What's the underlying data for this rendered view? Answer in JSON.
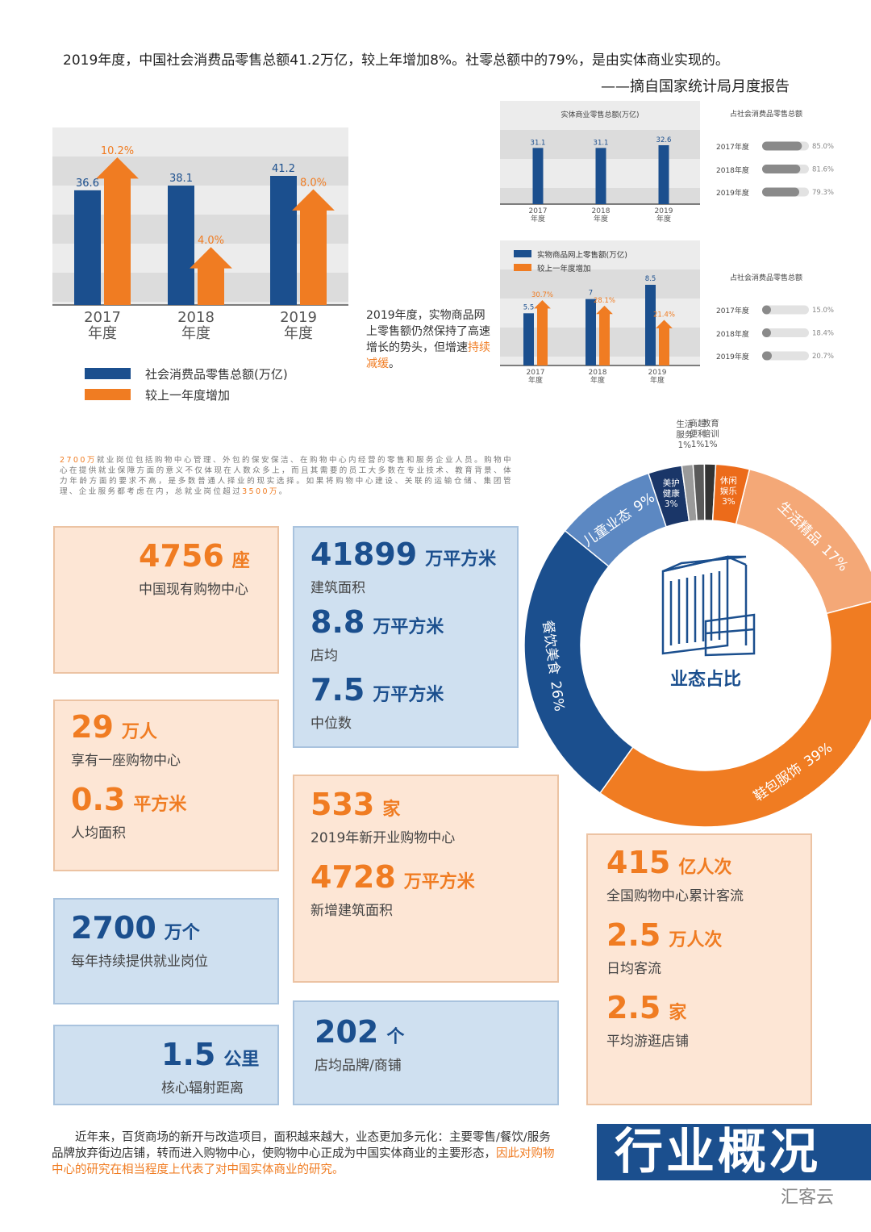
{
  "header": {
    "text": "2019年度，中国社会消费品零售总额41.2万亿，较上年增加8%。社零总额中的79%，是由实体商业实现的。",
    "source": "——摘自国家统计局月度报告"
  },
  "chart_data": [
    {
      "type": "bar_arrow",
      "categories": [
        "2017年度",
        "2018年度",
        "2019年度"
      ],
      "series": [
        {
          "name": "社会消费品零售总额(万亿)",
          "color": "#1b4f8e",
          "values": [
            36.6,
            38.1,
            41.2
          ]
        },
        {
          "name": "较上一年度增加",
          "color": "#f07c22",
          "values": [
            10.2,
            4.0,
            8.0
          ],
          "value_labels": [
            "10.2%",
            "4.0%",
            "8.0%"
          ]
        }
      ],
      "legend": "bottom-left"
    },
    {
      "type": "bar",
      "title": "实体商业零售总额(万亿)",
      "categories": [
        "2017年度",
        "2018年度",
        "2019年度"
      ],
      "values": [
        31.1,
        31.1,
        32.6
      ],
      "color": "#1b4f8e"
    },
    {
      "type": "progress",
      "title": "占社会消费品零售总额",
      "categories": [
        "2017年度",
        "2018年度",
        "2019年度"
      ],
      "values": [
        85.0,
        81.6,
        79.3
      ],
      "value_labels": [
        "85.0%",
        "81.6%",
        "79.3%"
      ],
      "xlim": [
        0,
        100
      ],
      "color": "#8a8a8a"
    },
    {
      "type": "bar_arrow",
      "categories": [
        "2017年度",
        "2018年度",
        "2019年度"
      ],
      "series": [
        {
          "name": "实物商品网上零售额(万亿)",
          "color": "#1b4f8e",
          "values": [
            5.5,
            7.0,
            8.5
          ]
        },
        {
          "name": "较上一年度增加",
          "color": "#f07c22",
          "values": [
            30.7,
            28.1,
            21.4
          ],
          "value_labels": [
            "30.7%",
            "28.1%",
            "21.4%"
          ]
        }
      ],
      "legend": "top-left"
    },
    {
      "type": "progress",
      "title": "占社会消费品零售总额",
      "categories": [
        "2017年度",
        "2018年度",
        "2019年度"
      ],
      "values": [
        15.0,
        18.4,
        20.7
      ],
      "value_labels": [
        "15.0%",
        "18.4%",
        "20.7%"
      ],
      "xlim": [
        0,
        100
      ],
      "color": "#8a8a8a"
    },
    {
      "type": "donut",
      "title": "业态占比",
      "categories": [
        "生活精品",
        "鞋包服饰",
        "餐饮美食",
        "儿童业态",
        "美护健康",
        "生活服务",
        "商超便利",
        "教育培训",
        "休闲娱乐"
      ],
      "values": [
        17,
        39,
        26,
        9,
        3,
        1,
        1,
        1,
        3
      ],
      "value_labels": [
        "17%",
        "39%",
        "26%",
        "9%",
        "3%",
        "1%",
        "1%",
        "1%",
        "3%"
      ],
      "colors": [
        "#f4a877",
        "#f07c22",
        "#1b4f8e",
        "#5c88c2",
        "#1a3668",
        "#9a9a9a",
        "#5a5a5a",
        "#333333",
        "#ec6b1a"
      ]
    }
  ],
  "online_note": {
    "text": "2019年度，实物商品网上零售额仍然保持了高速增长的势头，但增速",
    "highlight": "持续减缓",
    "end": "。"
  },
  "employment_note": [
    {
      "text": "2700万",
      "highlight": true
    },
    {
      "text": "就业岗位包括购物中心管理、外包的保安保洁、在购物中心内经营的零售和服务企业人员。购物中心在提供就业保障方面的意义不仅体现在人数众多上，而且其需要的员工大多数在专业技术、教育背景、体力年龄方面的要求不高，是多数普通人择业的现实选择。如果将购物中心建设、关联的运输仓储、集团管理、企业服务都考虑在内，总就业岗位超过"
    },
    {
      "text": "3500万",
      "highlight": true
    },
    {
      "text": "。"
    }
  ],
  "stats": [
    {
      "theme": "peach",
      "items": [
        {
          "number": 4756,
          "unit": "座",
          "label": "中国现有购物中心"
        }
      ]
    },
    {
      "theme": "blue",
      "items": [
        {
          "number": 41899,
          "unit": "万平方米",
          "label": "建筑面积"
        },
        {
          "number": 8.8,
          "unit": "万平方米",
          "label": "店均"
        },
        {
          "number": 7.5,
          "unit": "万平方米",
          "label": "中位数"
        }
      ]
    },
    {
      "theme": "peach",
      "items": [
        {
          "number": 29,
          "unit": "万人",
          "label": "享有一座购物中心"
        },
        {
          "number": 0.3,
          "unit": "平方米",
          "label": "人均面积"
        }
      ]
    },
    {
      "theme": "peach",
      "items": [
        {
          "number": 533,
          "unit": "家",
          "label": "2019年新开业购物中心"
        },
        {
          "number": 4728,
          "unit": "万平方米",
          "label": "新增建筑面积"
        }
      ]
    },
    {
      "theme": "blue",
      "items": [
        {
          "number": 2700,
          "unit": "万个",
          "label": "每年持续提供就业岗位"
        }
      ]
    },
    {
      "theme": "peach",
      "items": [
        {
          "number": 415,
          "unit": "亿人次",
          "label": "全国购物中心累计客流"
        },
        {
          "number": 2.5,
          "unit": "万人次",
          "label": "日均客流"
        },
        {
          "number": 2.5,
          "unit": "家",
          "label": "平均游逛店铺"
        }
      ]
    },
    {
      "theme": "blue",
      "items": [
        {
          "number": 1.5,
          "unit": "公里",
          "label": "核心辐射距离"
        }
      ]
    },
    {
      "theme": "blue",
      "items": [
        {
          "number": 202,
          "unit": "个",
          "label": "店均品牌/商铺"
        }
      ]
    }
  ],
  "footer": {
    "text": "近年来，百货商场的新开与改造项目，面积越来越大，业态更加多元化：主要零售/餐饮/服务品牌放弃街边店铺，转而进入购物中心，使购物中心正成为中国实体商业的主要形态，",
    "highlight": "因此对购物中心的研究在相当程度上代表了对中国实体商业的研究。"
  },
  "banner": "行业概况",
  "logo": "汇客云"
}
